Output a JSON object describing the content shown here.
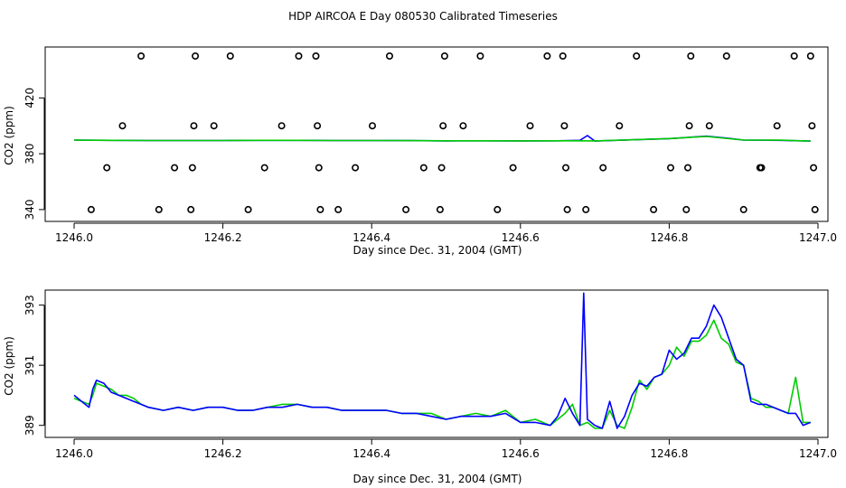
{
  "figure": {
    "title": "HDP AIRCOA E  Day 080530  Calibrated Timeseries"
  },
  "chart_data": [
    {
      "type": "scatter",
      "xlabel": "Day since Dec. 31, 2004 (GMT)",
      "ylabel": "CO2 (ppm)",
      "xlim": [
        1246.0,
        1247.0
      ],
      "ylim": [
        338,
        450
      ],
      "xticks": [
        1246.0,
        1246.2,
        1246.4,
        1246.6,
        1246.8,
        1247.0
      ],
      "xtick_labels": [
        "1246.0",
        "1246.2",
        "1246.4",
        "1246.6",
        "1246.8",
        "1247.0"
      ],
      "yticks": [
        340,
        380,
        420
      ],
      "ytick_labels": [
        "340",
        "380",
        "420"
      ],
      "grid": false,
      "legend": "none",
      "line_series": [
        {
          "color": "#0000ff",
          "x": [
            1246.0,
            1246.05,
            1246.1,
            1246.15,
            1246.2,
            1246.25,
            1246.3,
            1246.35,
            1246.4,
            1246.45,
            1246.5,
            1246.55,
            1246.6,
            1246.65,
            1246.68,
            1246.69,
            1246.7,
            1246.75,
            1246.8,
            1246.85,
            1246.88,
            1246.9,
            1246.95,
            1246.99
          ],
          "y": [
            389.8,
            389.6,
            389.5,
            389.5,
            389.5,
            389.6,
            389.6,
            389.5,
            389.5,
            389.4,
            389.2,
            389.3,
            389.2,
            389.3,
            389.6,
            393.0,
            389.1,
            390.0,
            390.8,
            392.6,
            391.0,
            389.8,
            389.6,
            389.1
          ]
        },
        {
          "color": "#00cc00",
          "x": [
            1246.0,
            1246.05,
            1246.1,
            1246.15,
            1246.2,
            1246.25,
            1246.3,
            1246.35,
            1246.4,
            1246.45,
            1246.5,
            1246.55,
            1246.6,
            1246.65,
            1246.7,
            1246.75,
            1246.8,
            1246.85,
            1246.9,
            1246.95,
            1246.99
          ],
          "y": [
            389.7,
            389.6,
            389.5,
            389.5,
            389.5,
            389.6,
            389.6,
            389.5,
            389.5,
            389.4,
            389.3,
            389.3,
            389.2,
            389.3,
            389.2,
            390.0,
            390.9,
            392.4,
            389.8,
            389.7,
            389.1
          ]
        }
      ],
      "point_series": {
        "marker": "open-circle",
        "color": "#000000",
        "points": [
          {
            "x": 1246.023,
            "y": 340
          },
          {
            "x": 1246.044,
            "y": 370
          },
          {
            "x": 1246.065,
            "y": 400
          },
          {
            "x": 1246.09,
            "y": 450
          },
          {
            "x": 1246.114,
            "y": 340
          },
          {
            "x": 1246.135,
            "y": 370
          },
          {
            "x": 1246.157,
            "y": 340
          },
          {
            "x": 1246.159,
            "y": 370
          },
          {
            "x": 1246.161,
            "y": 400
          },
          {
            "x": 1246.163,
            "y": 450
          },
          {
            "x": 1246.188,
            "y": 400
          },
          {
            "x": 1246.21,
            "y": 450
          },
          {
            "x": 1246.234,
            "y": 340
          },
          {
            "x": 1246.256,
            "y": 370
          },
          {
            "x": 1246.279,
            "y": 400
          },
          {
            "x": 1246.302,
            "y": 450
          },
          {
            "x": 1246.325,
            "y": 450
          },
          {
            "x": 1246.327,
            "y": 400
          },
          {
            "x": 1246.329,
            "y": 370
          },
          {
            "x": 1246.331,
            "y": 340
          },
          {
            "x": 1246.355,
            "y": 340
          },
          {
            "x": 1246.378,
            "y": 370
          },
          {
            "x": 1246.401,
            "y": 400
          },
          {
            "x": 1246.424,
            "y": 450
          },
          {
            "x": 1246.446,
            "y": 340
          },
          {
            "x": 1246.47,
            "y": 370
          },
          {
            "x": 1246.492,
            "y": 340
          },
          {
            "x": 1246.494,
            "y": 370
          },
          {
            "x": 1246.496,
            "y": 400
          },
          {
            "x": 1246.498,
            "y": 450
          },
          {
            "x": 1246.523,
            "y": 400
          },
          {
            "x": 1246.546,
            "y": 450
          },
          {
            "x": 1246.569,
            "y": 340
          },
          {
            "x": 1246.59,
            "y": 370
          },
          {
            "x": 1246.613,
            "y": 400
          },
          {
            "x": 1246.636,
            "y": 450
          },
          {
            "x": 1246.657,
            "y": 450
          },
          {
            "x": 1246.659,
            "y": 400
          },
          {
            "x": 1246.661,
            "y": 370
          },
          {
            "x": 1246.663,
            "y": 340
          },
          {
            "x": 1246.688,
            "y": 340
          },
          {
            "x": 1246.711,
            "y": 370
          },
          {
            "x": 1246.733,
            "y": 400
          },
          {
            "x": 1246.756,
            "y": 450
          },
          {
            "x": 1246.779,
            "y": 340
          },
          {
            "x": 1246.802,
            "y": 370
          },
          {
            "x": 1246.823,
            "y": 340
          },
          {
            "x": 1246.825,
            "y": 370
          },
          {
            "x": 1246.827,
            "y": 400
          },
          {
            "x": 1246.829,
            "y": 450
          },
          {
            "x": 1246.854,
            "y": 400
          },
          {
            "x": 1246.877,
            "y": 450
          },
          {
            "x": 1246.9,
            "y": 340
          },
          {
            "x": 1246.922,
            "y": 370
          },
          {
            "x": 1246.924,
            "y": 370
          },
          {
            "x": 1246.945,
            "y": 400
          },
          {
            "x": 1246.968,
            "y": 450
          },
          {
            "x": 1246.99,
            "y": 450
          },
          {
            "x": 1246.992,
            "y": 400
          },
          {
            "x": 1246.994,
            "y": 370
          },
          {
            "x": 1246.996,
            "y": 340
          }
        ]
      }
    },
    {
      "type": "line",
      "xlabel": "Day since Dec. 31, 2004 (GMT)",
      "ylabel": "CO2 (ppm)",
      "xlim": [
        1246.0,
        1247.0
      ],
      "ylim": [
        388.6,
        393.5
      ],
      "xticks": [
        1246.0,
        1246.2,
        1246.4,
        1246.6,
        1246.8,
        1247.0
      ],
      "xtick_labels": [
        "1246.0",
        "1246.2",
        "1246.4",
        "1246.6",
        "1246.8",
        "1247.0"
      ],
      "yticks": [
        389,
        391,
        393
      ],
      "ytick_labels": [
        "389",
        "391",
        "393"
      ],
      "grid": false,
      "legend": "none",
      "series": [
        {
          "color": "#00cc00",
          "x": [
            1246.0,
            1246.01,
            1246.02,
            1246.025,
            1246.03,
            1246.04,
            1246.05,
            1246.06,
            1246.07,
            1246.08,
            1246.09,
            1246.1,
            1246.12,
            1246.14,
            1246.16,
            1246.18,
            1246.2,
            1246.22,
            1246.24,
            1246.26,
            1246.28,
            1246.3,
            1246.32,
            1246.34,
            1246.36,
            1246.38,
            1246.4,
            1246.42,
            1246.44,
            1246.46,
            1246.48,
            1246.5,
            1246.52,
            1246.54,
            1246.56,
            1246.58,
            1246.6,
            1246.62,
            1246.64,
            1246.66,
            1246.67,
            1246.68,
            1246.69,
            1246.7,
            1246.71,
            1246.72,
            1246.73,
            1246.74,
            1246.75,
            1246.76,
            1246.77,
            1246.78,
            1246.79,
            1246.8,
            1246.81,
            1246.82,
            1246.83,
            1246.84,
            1246.85,
            1246.86,
            1246.87,
            1246.88,
            1246.89,
            1246.9,
            1246.91,
            1246.92,
            1246.93,
            1246.94,
            1246.95,
            1246.96,
            1246.97,
            1246.98,
            1246.99
          ],
          "y": [
            389.9,
            389.8,
            389.7,
            390.0,
            390.4,
            390.3,
            390.2,
            390.0,
            390.0,
            389.9,
            389.7,
            389.6,
            389.5,
            389.6,
            389.5,
            389.6,
            389.6,
            389.5,
            389.5,
            389.6,
            389.7,
            389.7,
            389.6,
            389.6,
            389.5,
            389.5,
            389.5,
            389.5,
            389.4,
            389.4,
            389.4,
            389.2,
            389.3,
            389.4,
            389.3,
            389.5,
            389.1,
            389.2,
            389.0,
            389.4,
            389.7,
            389.0,
            389.1,
            388.9,
            388.9,
            389.5,
            389.0,
            388.9,
            389.6,
            390.5,
            390.2,
            390.6,
            390.7,
            391.0,
            391.6,
            391.3,
            391.8,
            391.8,
            392.0,
            392.5,
            391.9,
            391.7,
            391.1,
            391.0,
            389.9,
            389.8,
            389.6,
            389.6,
            389.5,
            389.4,
            390.6,
            389.1,
            389.1
          ]
        },
        {
          "color": "#0000ff",
          "x": [
            1246.0,
            1246.01,
            1246.02,
            1246.025,
            1246.03,
            1246.04,
            1246.05,
            1246.06,
            1246.07,
            1246.08,
            1246.09,
            1246.1,
            1246.12,
            1246.14,
            1246.16,
            1246.18,
            1246.2,
            1246.22,
            1246.24,
            1246.26,
            1246.28,
            1246.3,
            1246.32,
            1246.34,
            1246.36,
            1246.38,
            1246.4,
            1246.42,
            1246.44,
            1246.46,
            1246.48,
            1246.5,
            1246.52,
            1246.54,
            1246.56,
            1246.58,
            1246.6,
            1246.62,
            1246.64,
            1246.65,
            1246.66,
            1246.67,
            1246.68,
            1246.685,
            1246.69,
            1246.7,
            1246.71,
            1246.72,
            1246.73,
            1246.74,
            1246.75,
            1246.76,
            1246.77,
            1246.78,
            1246.79,
            1246.8,
            1246.81,
            1246.82,
            1246.83,
            1246.84,
            1246.85,
            1246.86,
            1246.87,
            1246.88,
            1246.89,
            1246.9,
            1246.91,
            1246.92,
            1246.93,
            1246.94,
            1246.95,
            1246.96,
            1246.97,
            1246.98,
            1246.99
          ],
          "y": [
            390.0,
            389.8,
            389.6,
            390.2,
            390.5,
            390.4,
            390.1,
            390.0,
            389.9,
            389.8,
            389.7,
            389.6,
            389.5,
            389.6,
            389.5,
            389.6,
            389.6,
            389.5,
            389.5,
            389.6,
            389.6,
            389.7,
            389.6,
            389.6,
            389.5,
            389.5,
            389.5,
            389.5,
            389.4,
            389.4,
            389.3,
            389.2,
            389.3,
            389.3,
            389.3,
            389.4,
            389.1,
            389.1,
            389.0,
            389.3,
            389.9,
            389.4,
            389.0,
            393.4,
            389.2,
            389.0,
            388.9,
            389.8,
            388.9,
            389.3,
            390.0,
            390.4,
            390.3,
            390.6,
            390.7,
            391.5,
            391.2,
            391.4,
            391.9,
            391.9,
            392.3,
            393.0,
            392.6,
            391.9,
            391.2,
            391.0,
            389.8,
            389.7,
            389.7,
            389.6,
            389.5,
            389.4,
            389.4,
            389.0,
            389.1
          ]
        }
      ]
    }
  ]
}
